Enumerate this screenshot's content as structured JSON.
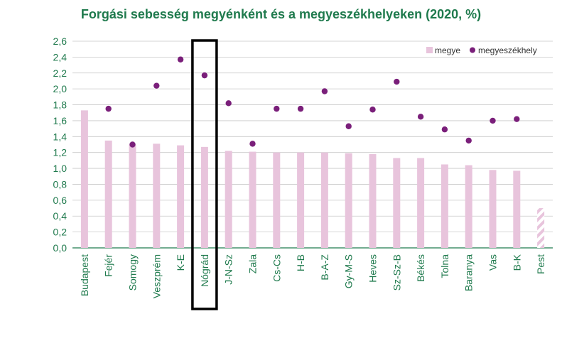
{
  "chart_data": {
    "type": "bar",
    "title": "Forgási sebesség megyénként és a megyeszékhelyeken (2020, %)",
    "xlabel": "",
    "ylabel": "",
    "ylim": [
      0,
      2.6
    ],
    "yticks": [
      "0,0",
      "0,2",
      "0,4",
      "0,6",
      "0,8",
      "1,0",
      "1,2",
      "1,4",
      "1,6",
      "1,8",
      "2,0",
      "2,2",
      "2,4",
      "2,6"
    ],
    "grid": true,
    "legend_position": "top-right",
    "categories": [
      "Budapest",
      "Fejér",
      "Somogy",
      "Veszprém",
      "K-E",
      "Nógrád",
      "J-N-Sz",
      "Zala",
      "Cs-Cs",
      "H-B",
      "B-A-Z",
      "Gy-M-S",
      "Heves",
      "Sz-Sz-B",
      "Békés",
      "Tolna",
      "Baranya",
      "Vas",
      "B-K",
      "Pest"
    ],
    "highlighted_category": "Nógrád",
    "series": [
      {
        "name": "megye",
        "kind": "bar",
        "color": "#e8c4dc",
        "values": [
          1.73,
          1.35,
          1.3,
          1.31,
          1.29,
          1.27,
          1.22,
          1.21,
          1.2,
          1.2,
          1.2,
          1.19,
          1.18,
          1.13,
          1.13,
          1.05,
          1.04,
          0.98,
          0.97,
          0.5
        ]
      },
      {
        "name": "megyeszékhely",
        "kind": "point",
        "color": "#7a1f7a",
        "values": [
          null,
          1.75,
          1.3,
          2.04,
          2.37,
          2.17,
          1.82,
          1.31,
          1.75,
          1.75,
          1.97,
          1.53,
          1.74,
          2.09,
          1.65,
          1.49,
          1.35,
          1.6,
          1.62,
          null
        ]
      }
    ],
    "hatched_bar_category": "Pest"
  }
}
